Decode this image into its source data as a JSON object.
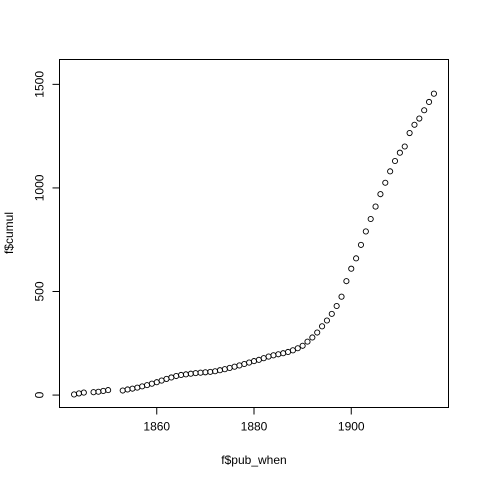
{
  "chart_data": {
    "type": "scatter",
    "xlabel": "f$pub_when",
    "ylabel": "f$cumul",
    "xlim": [
      1840,
      1920
    ],
    "ylim": [
      -60,
      1620
    ],
    "x_ticks": [
      1860,
      1880,
      1900
    ],
    "y_ticks": [
      0,
      500,
      1000,
      1500
    ],
    "x_tick_labels": [
      "1860",
      "1880",
      "1900"
    ],
    "y_tick_labels": [
      "0",
      "500",
      "1000",
      "1500"
    ],
    "grid": false,
    "legend": "none",
    "marker": "open-circle",
    "x": [
      1843,
      1844,
      1845,
      1847,
      1848,
      1849,
      1850,
      1853,
      1854,
      1855,
      1856,
      1857,
      1858,
      1859,
      1860,
      1861,
      1862,
      1863,
      1864,
      1865,
      1866,
      1867,
      1868,
      1869,
      1870,
      1871,
      1872,
      1873,
      1874,
      1875,
      1876,
      1877,
      1878,
      1879,
      1880,
      1881,
      1882,
      1883,
      1884,
      1885,
      1886,
      1887,
      1888,
      1889,
      1890,
      1891,
      1892,
      1893,
      1894,
      1895,
      1896,
      1897,
      1898,
      1899,
      1900,
      1901,
      1902,
      1903,
      1904,
      1905,
      1906,
      1907,
      1908,
      1909,
      1910,
      1911,
      1912,
      1913,
      1914,
      1915,
      1916,
      1917
    ],
    "y": [
      3,
      8,
      12,
      14,
      16,
      20,
      24,
      22,
      27,
      31,
      36,
      42,
      48,
      55,
      62,
      70,
      78,
      85,
      92,
      97,
      100,
      103,
      106,
      108,
      110,
      112,
      115,
      120,
      125,
      131,
      137,
      143,
      150,
      157,
      164,
      170,
      178,
      186,
      192,
      197,
      202,
      208,
      216,
      226,
      238,
      258,
      278,
      302,
      332,
      360,
      392,
      430,
      475,
      550,
      610,
      660,
      725,
      790,
      850,
      910,
      970,
      1025,
      1080,
      1130,
      1170,
      1200,
      1265,
      1305,
      1335,
      1375,
      1415,
      1455
    ]
  }
}
